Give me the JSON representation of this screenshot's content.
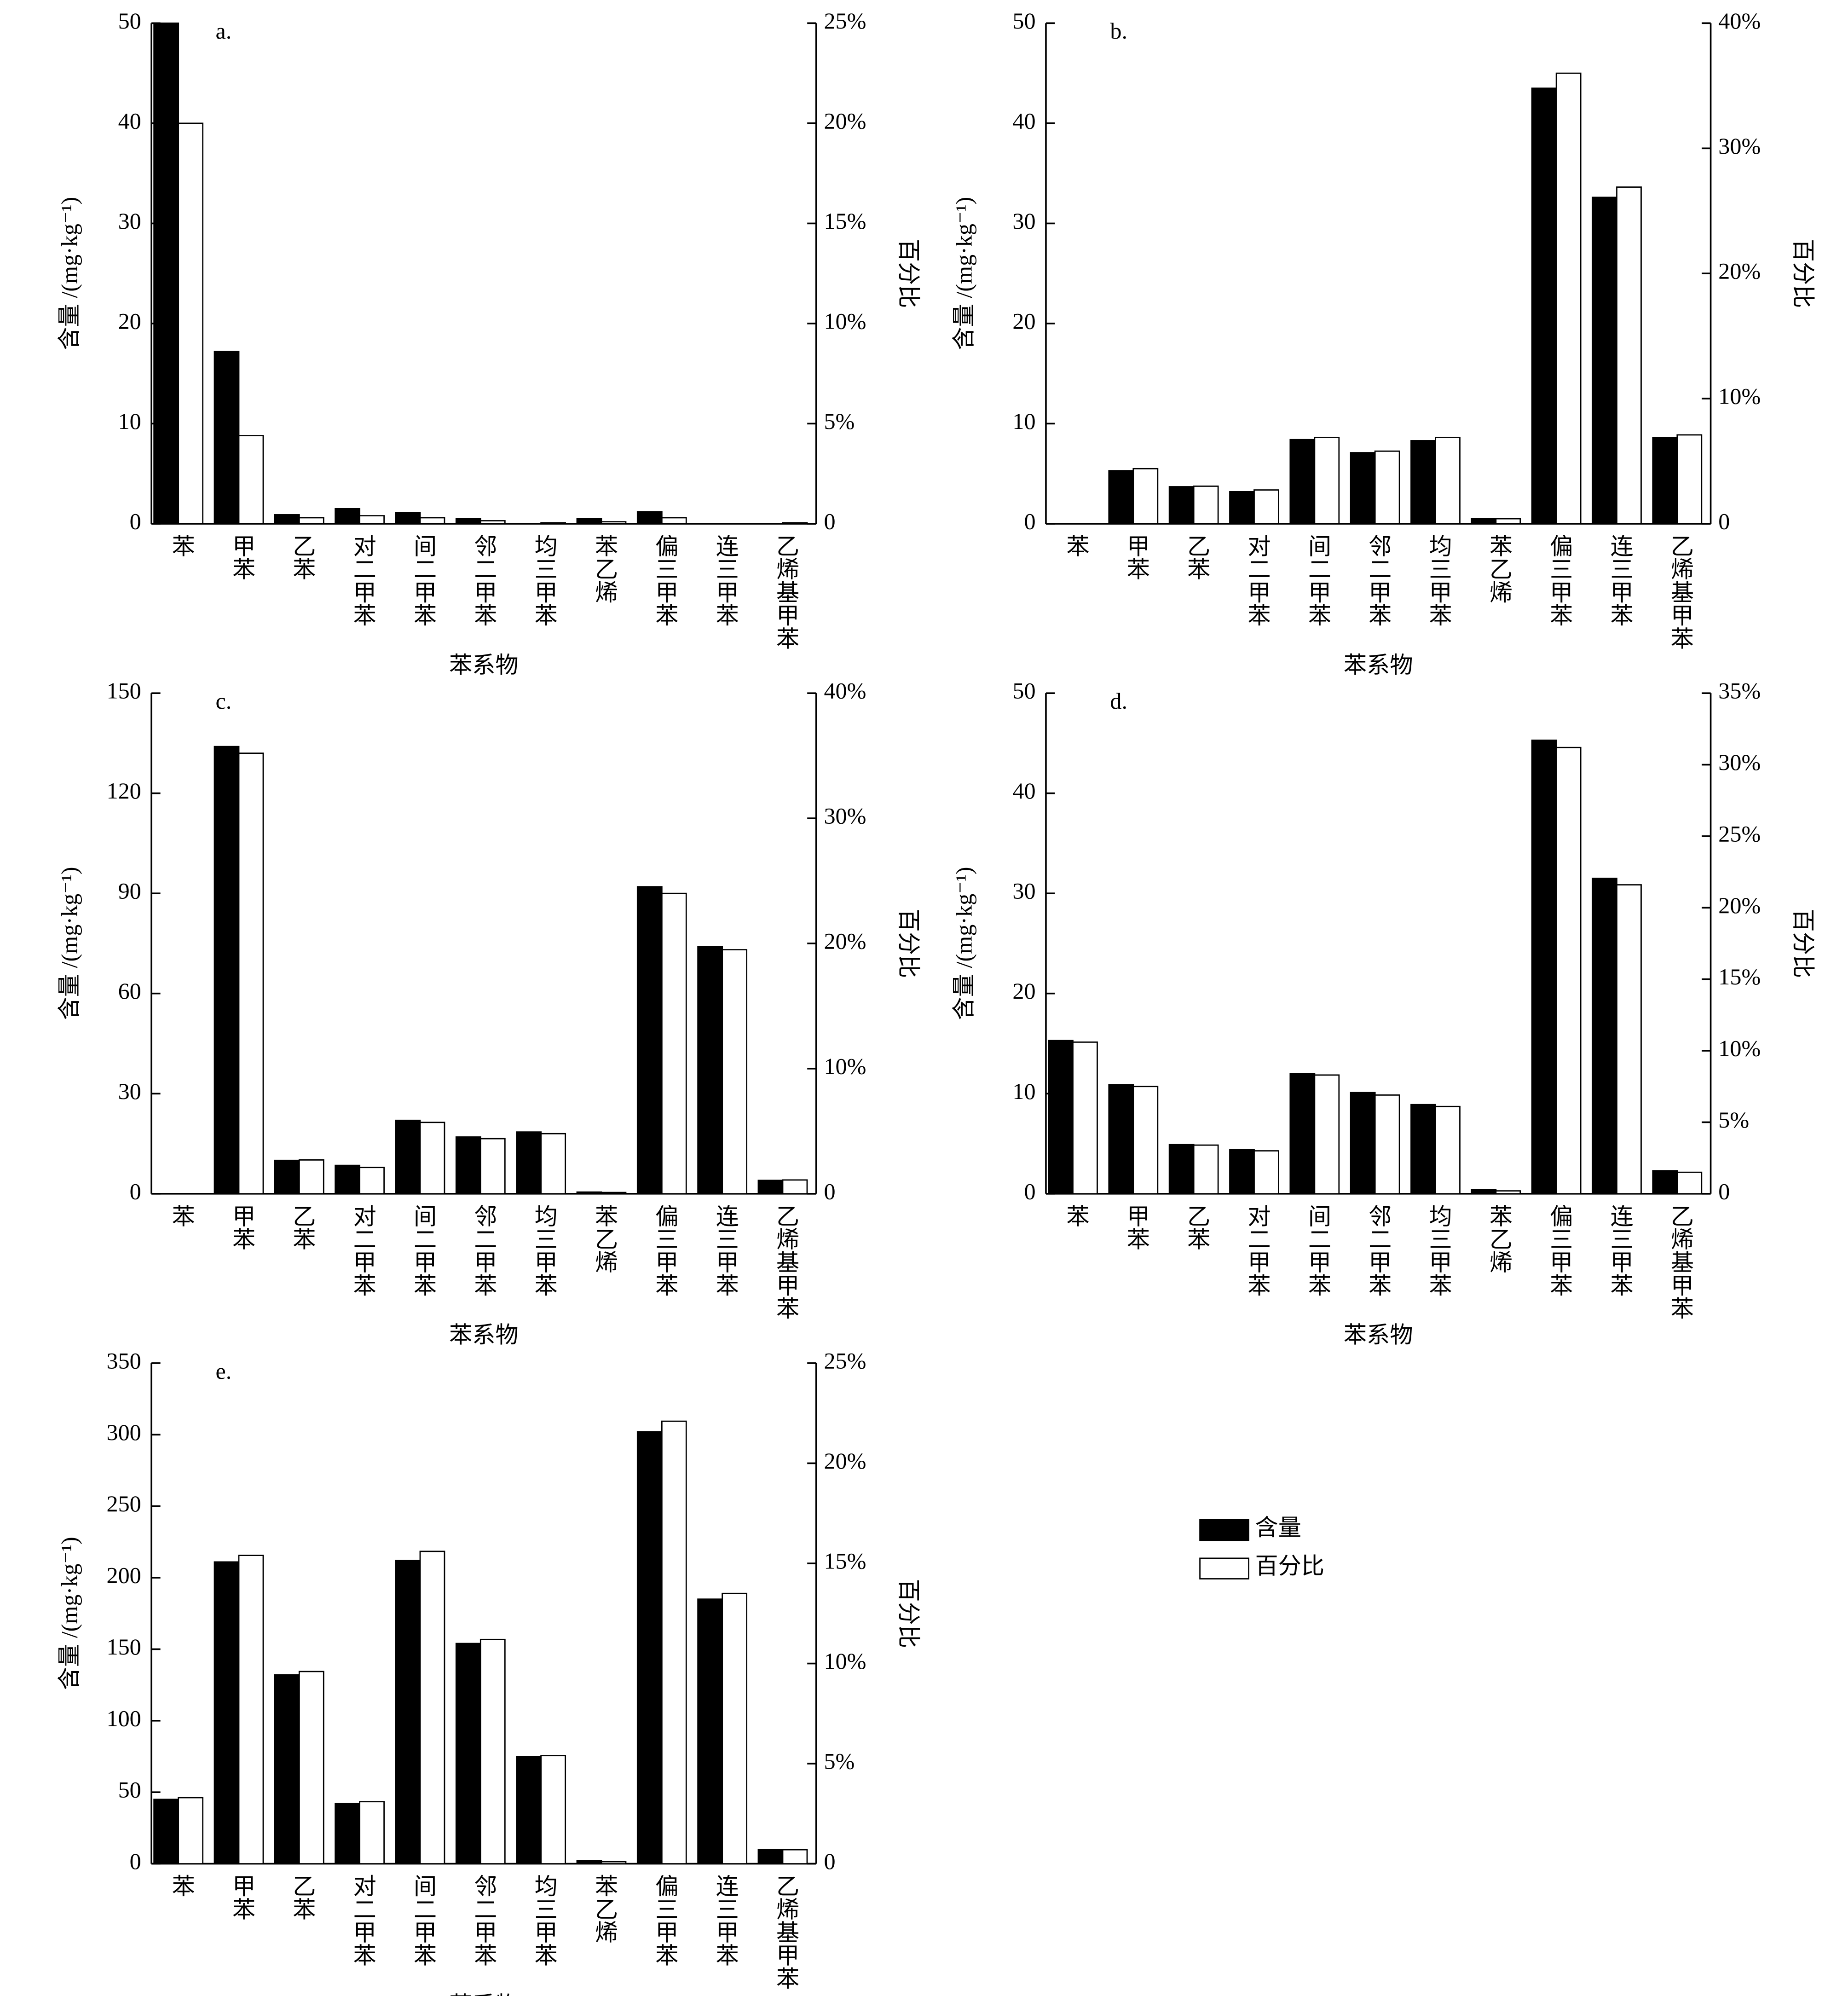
{
  "legend": [
    {
      "name": "含量",
      "color": "#000000"
    },
    {
      "name": "百分比",
      "color": "#ffffff"
    }
  ],
  "chart_data": [
    {
      "type": "bar",
      "title": "a.",
      "xlabel": "苯系物",
      "ylabel": "含量 /(mg·kg⁻¹)",
      "y2label": "百分比",
      "categories": [
        "苯",
        "甲苯",
        "乙苯",
        "对二甲苯",
        "间二甲苯",
        "邻二甲苯",
        "均三甲苯",
        "苯乙烯",
        "偏三甲苯",
        "连三甲苯",
        "乙烯基甲苯"
      ],
      "series": [
        {
          "color": "#000000",
          "values": [
            50,
            17.2,
            0.9,
            1.5,
            1.1,
            0.5,
            0,
            0.5,
            1.2,
            0,
            0
          ]
        },
        {
          "color": "#ffffff",
          "axis": "y2",
          "values": [
            20,
            4.4,
            0.3,
            0.4,
            0.3,
            0.15,
            0.05,
            0.1,
            0.3,
            0,
            0.05
          ]
        }
      ],
      "ylim": [
        0,
        50
      ],
      "yticks": [
        0,
        10,
        20,
        30,
        40,
        50
      ],
      "y2lim": [
        0,
        25
      ],
      "y2ticks": [
        {
          "value": 0,
          "label": "0"
        },
        {
          "value": 5,
          "label": "5%"
        },
        {
          "value": 10,
          "label": "10%"
        },
        {
          "value": 15,
          "label": "15%"
        },
        {
          "value": 20,
          "label": "20%"
        },
        {
          "value": 25,
          "label": "25%"
        }
      ]
    },
    {
      "type": "bar",
      "title": "b.",
      "xlabel": "苯系物",
      "ylabel": "含量 /(mg·kg⁻¹)",
      "y2label": "百分比",
      "categories": [
        "苯",
        "甲苯",
        "乙苯",
        "对二甲苯",
        "间二甲苯",
        "邻二甲苯",
        "均三甲苯",
        "苯乙烯",
        "偏三甲苯",
        "连三甲苯",
        "乙烯基甲苯"
      ],
      "series": [
        {
          "color": "#000000",
          "values": [
            0,
            5.3,
            3.7,
            3.2,
            8.4,
            7.1,
            8.3,
            0.5,
            43.5,
            32.6,
            8.6
          ]
        },
        {
          "color": "#ffffff",
          "axis": "y2",
          "values": [
            0,
            4.4,
            3.0,
            2.7,
            6.9,
            5.8,
            6.9,
            0.4,
            36.0,
            26.9,
            7.1
          ]
        }
      ],
      "ylim": [
        0,
        50
      ],
      "yticks": [
        0,
        10,
        20,
        30,
        40,
        50
      ],
      "y2lim": [
        0,
        40
      ],
      "y2ticks": [
        {
          "value": 0,
          "label": "0"
        },
        {
          "value": 10,
          "label": "10%"
        },
        {
          "value": 20,
          "label": "20%"
        },
        {
          "value": 30,
          "label": "30%"
        },
        {
          "value": 40,
          "label": "40%"
        }
      ]
    },
    {
      "type": "bar",
      "title": "c.",
      "xlabel": "苯系物",
      "ylabel": "含量 /(mg·kg⁻¹)",
      "y2label": "百分比",
      "categories": [
        "苯",
        "甲苯",
        "乙苯",
        "对二甲苯",
        "间二甲苯",
        "邻二甲苯",
        "均三甲苯",
        "苯乙烯",
        "偏三甲苯",
        "连三甲苯",
        "乙烯基甲苯"
      ],
      "series": [
        {
          "color": "#000000",
          "values": [
            0,
            134,
            10,
            8.5,
            22,
            17,
            18.5,
            0.5,
            92,
            74,
            4
          ]
        },
        {
          "color": "#ffffff",
          "axis": "y2",
          "values": [
            0,
            35.2,
            2.7,
            2.1,
            5.7,
            4.4,
            4.8,
            0.1,
            24.0,
            19.5,
            1.1
          ]
        }
      ],
      "ylim": [
        0,
        150
      ],
      "yticks": [
        0,
        30,
        60,
        90,
        120,
        150
      ],
      "y2lim": [
        0,
        40
      ],
      "y2ticks": [
        {
          "value": 0,
          "label": "0"
        },
        {
          "value": 10,
          "label": "10%"
        },
        {
          "value": 20,
          "label": "20%"
        },
        {
          "value": 30,
          "label": "30%"
        },
        {
          "value": 40,
          "label": "40%"
        }
      ]
    },
    {
      "type": "bar",
      "title": "d.",
      "xlabel": "苯系物",
      "ylabel": "含量 /(mg·kg⁻¹)",
      "y2label": "百分比",
      "categories": [
        "苯",
        "甲苯",
        "乙苯",
        "对二甲苯",
        "间二甲苯",
        "邻二甲苯",
        "均三甲苯",
        "苯乙烯",
        "偏三甲苯",
        "连三甲苯",
        "乙烯基甲苯"
      ],
      "series": [
        {
          "color": "#000000",
          "values": [
            15.3,
            10.9,
            4.9,
            4.4,
            12.0,
            10.1,
            8.9,
            0.4,
            45.3,
            31.5,
            2.3
          ]
        },
        {
          "color": "#ffffff",
          "axis": "y2",
          "values": [
            10.6,
            7.5,
            3.4,
            3.0,
            8.3,
            6.9,
            6.1,
            0.2,
            31.2,
            21.6,
            1.5
          ]
        }
      ],
      "ylim": [
        0,
        50
      ],
      "yticks": [
        0,
        10,
        20,
        30,
        40,
        50
      ],
      "y2lim": [
        0,
        35
      ],
      "y2ticks": [
        {
          "value": 0,
          "label": "0"
        },
        {
          "value": 5,
          "label": "5%"
        },
        {
          "value": 10,
          "label": "10%"
        },
        {
          "value": 15,
          "label": "15%"
        },
        {
          "value": 20,
          "label": "20%"
        },
        {
          "value": 25,
          "label": "25%"
        },
        {
          "value": 30,
          "label": "30%"
        },
        {
          "value": 35,
          "label": "35%"
        }
      ]
    },
    {
      "type": "bar",
      "title": "e.",
      "xlabel": "苯系物",
      "ylabel": "含量 /(mg·kg⁻¹)",
      "y2label": "百分比",
      "categories": [
        "苯",
        "甲苯",
        "乙苯",
        "对二甲苯",
        "间二甲苯",
        "邻二甲苯",
        "均三甲苯",
        "苯乙烯",
        "偏三甲苯",
        "连三甲苯",
        "乙烯基甲苯"
      ],
      "series": [
        {
          "color": "#000000",
          "values": [
            45,
            211,
            132,
            42,
            212,
            154,
            75,
            2,
            302,
            185,
            10
          ]
        },
        {
          "color": "#ffffff",
          "axis": "y2",
          "values": [
            3.3,
            15.4,
            9.6,
            3.1,
            15.6,
            11.2,
            5.4,
            0.1,
            22.1,
            13.5,
            0.7
          ]
        }
      ],
      "ylim": [
        0,
        350
      ],
      "yticks": [
        0,
        50,
        100,
        150,
        200,
        250,
        300,
        350
      ],
      "y2lim": [
        0,
        25
      ],
      "y2ticks": [
        {
          "value": 0,
          "label": "0"
        },
        {
          "value": 5,
          "label": "5%"
        },
        {
          "value": 10,
          "label": "10%"
        },
        {
          "value": 15,
          "label": "15%"
        },
        {
          "value": 20,
          "label": "20%"
        },
        {
          "value": 25,
          "label": "25%"
        }
      ]
    }
  ]
}
